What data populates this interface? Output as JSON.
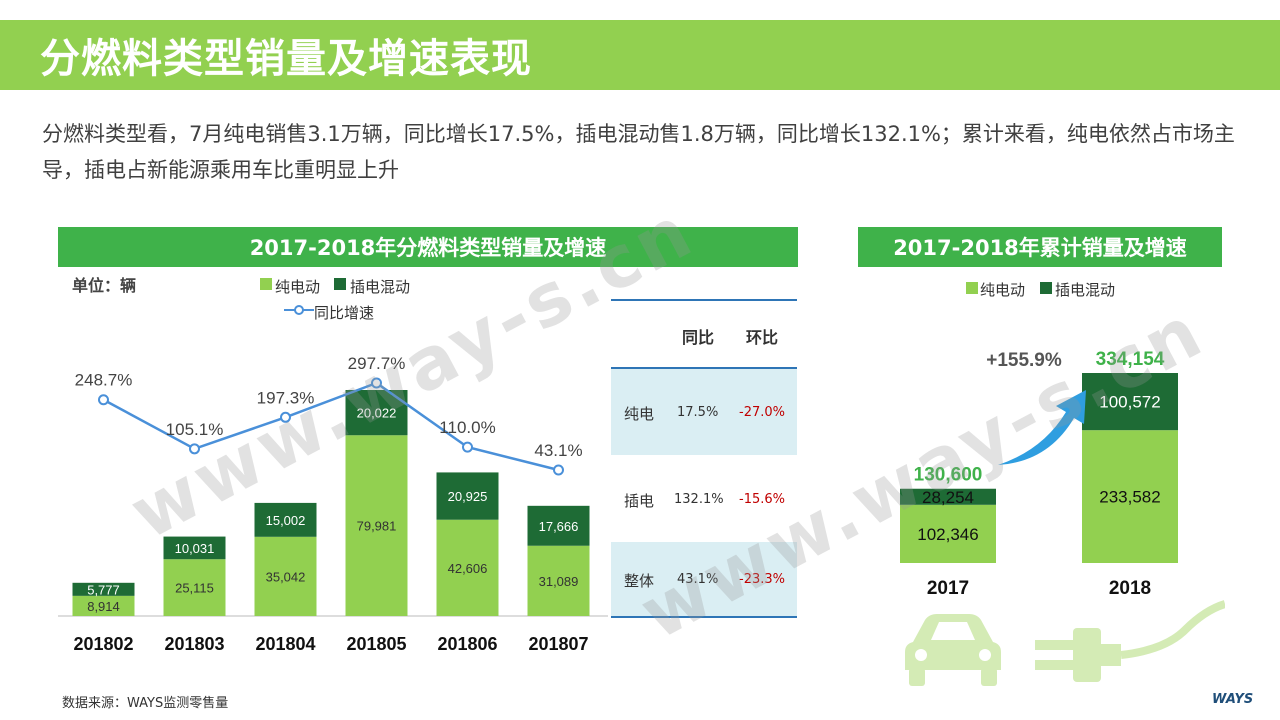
{
  "page": {
    "title": "分燃料类型销量及增速表现",
    "description": "分燃料类型看，7月纯电销售3.1万辆，同比增长17.5%，插电混动售1.8万辆，同比增长132.1%；累计来看，纯电依然占市场主导，插电占新能源乘用车比重明显上升",
    "source": "数据来源：WAYS监测零售量",
    "logo": "WAYS",
    "watermark": "www.way-s.cn"
  },
  "colors": {
    "bev": "#92d050",
    "phev": "#1e6b35",
    "line": "#4a90d9",
    "banner": "#3fb24a",
    "title_bar": "#92d050",
    "negative": "#c00000"
  },
  "chart_data": [
    {
      "type": "bar",
      "stacked": true,
      "title": "2017-2018年分燃料类型销量及增速",
      "unit": "单位：辆",
      "categories": [
        "201802",
        "201803",
        "201804",
        "201805",
        "201806",
        "201807"
      ],
      "series": [
        {
          "name": "纯电动",
          "values": [
            8914,
            25115,
            35042,
            79981,
            42606,
            31089
          ]
        },
        {
          "name": "插电混动",
          "values": [
            5777,
            10031,
            15002,
            20022,
            20925,
            17666
          ]
        }
      ],
      "line_series": {
        "name": "同比增速",
        "values": [
          248.7,
          105.1,
          197.3,
          297.7,
          110.0,
          43.1
        ],
        "labels": [
          "248.7%",
          "105.1%",
          "197.3%",
          "297.7%",
          "110.0%",
          "43.1%"
        ]
      },
      "labels": {
        "bev": [
          "8,914",
          "25,115",
          "35,042",
          "79,981",
          "42,606",
          "31,089"
        ],
        "phev": [
          "5,777",
          "10,031",
          "15,002",
          "20,022",
          "20,925",
          "17,666"
        ]
      },
      "legend": {
        "bev": "纯电动",
        "phev": "插电混动",
        "line": "同比增速"
      }
    },
    {
      "type": "table",
      "headers": [
        "",
        "同比",
        "环比"
      ],
      "rows": [
        {
          "label": "纯电",
          "yoy": "17.5%",
          "mom": "-27.0%"
        },
        {
          "label": "插电",
          "yoy": "132.1%",
          "mom": "-15.6%"
        },
        {
          "label": "整体",
          "yoy": "43.1%",
          "mom": "-23.3%"
        }
      ]
    },
    {
      "type": "bar",
      "stacked": true,
      "title": "2017-2018年累计销量及增速",
      "categories": [
        "2017",
        "2018"
      ],
      "series": [
        {
          "name": "纯电动",
          "values": [
            102346,
            233582
          ]
        },
        {
          "name": "插电混动",
          "values": [
            28254,
            100572
          ]
        }
      ],
      "totals": [
        130600,
        334154
      ],
      "total_labels": [
        "130,600",
        "334,154"
      ],
      "labels": {
        "bev": [
          "102,346",
          "233,582"
        ],
        "phev": [
          "28,254",
          "100,572"
        ]
      },
      "growth_label": "+155.9%",
      "legend": {
        "bev": "纯电动",
        "phev": "插电混动"
      }
    }
  ]
}
